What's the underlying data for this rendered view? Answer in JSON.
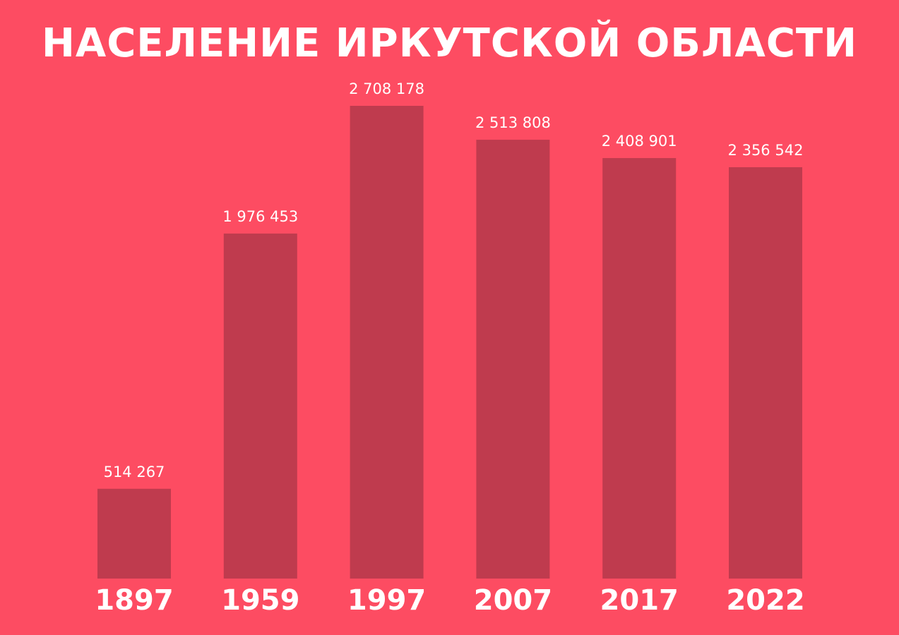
{
  "chart_data": {
    "type": "bar",
    "title": "НАСЕЛЕНИЕ ИРКУТСКОЙ ОБЛАСТИ",
    "categories": [
      "1897",
      "1959",
      "1997",
      "2007",
      "2017",
      "2022"
    ],
    "values": [
      514267,
      1976453,
      2708178,
      2513808,
      2408901,
      2356542
    ],
    "value_labels": [
      "514 267",
      "1 976 453",
      "2 708 178",
      "2 513 808",
      "2 408 901",
      "2 356 542"
    ],
    "ylim": [
      0,
      3000000
    ],
    "grid": false,
    "legend": "none",
    "colors": {
      "background": "#fd4c62",
      "bar": "#bf3b4e",
      "text": "#ffffff"
    }
  }
}
